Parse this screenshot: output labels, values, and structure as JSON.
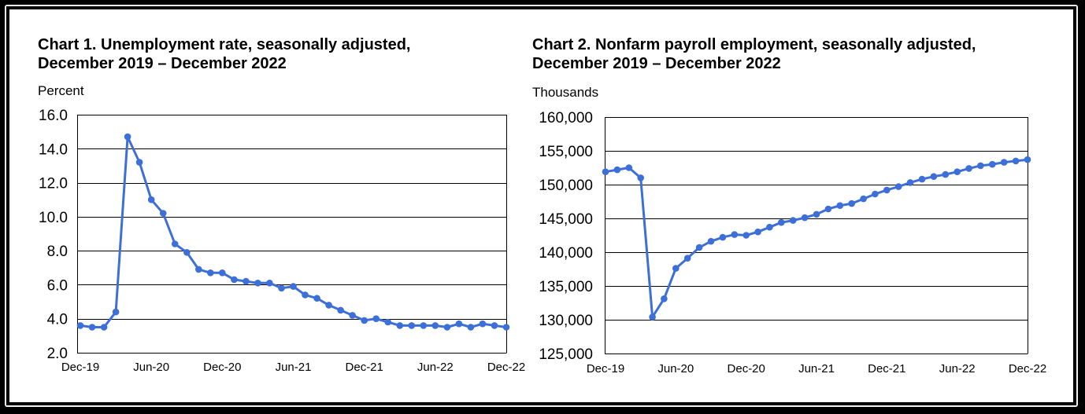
{
  "chart_data": [
    {
      "type": "line",
      "title": "Chart 1. Unemployment rate, seasonally adjusted,",
      "subtitle": "December 2019 – December 2022",
      "ylabel": "Percent",
      "ylim": [
        2.0,
        16.0
      ],
      "yticks": [
        "16.0",
        "14.0",
        "12.0",
        "10.0",
        "8.0",
        "6.0",
        "4.0",
        "2.0"
      ],
      "xticks": [
        "Dec-19",
        "Jun-20",
        "Dec-20",
        "Jun-21",
        "Dec-21",
        "Jun-22",
        "Dec-22"
      ],
      "grid": true,
      "markers": true,
      "line_color": "#3c6fd7",
      "x": [
        "Dec-19",
        "Jan-20",
        "Feb-20",
        "Mar-20",
        "Apr-20",
        "May-20",
        "Jun-20",
        "Jul-20",
        "Aug-20",
        "Sep-20",
        "Oct-20",
        "Nov-20",
        "Dec-20",
        "Jan-21",
        "Feb-21",
        "Mar-21",
        "Apr-21",
        "May-21",
        "Jun-21",
        "Jul-21",
        "Aug-21",
        "Sep-21",
        "Oct-21",
        "Nov-21",
        "Dec-21",
        "Jan-22",
        "Feb-22",
        "Mar-22",
        "Apr-22",
        "May-22",
        "Jun-22",
        "Jul-22",
        "Aug-22",
        "Sep-22",
        "Oct-22",
        "Nov-22",
        "Dec-22"
      ],
      "y": [
        3.6,
        3.5,
        3.5,
        4.4,
        14.7,
        13.2,
        11.0,
        10.2,
        8.4,
        7.9,
        6.9,
        6.7,
        6.7,
        6.3,
        6.2,
        6.1,
        6.1,
        5.8,
        5.9,
        5.4,
        5.2,
        4.8,
        4.5,
        4.2,
        3.9,
        4.0,
        3.8,
        3.6,
        3.6,
        3.6,
        3.6,
        3.5,
        3.7,
        3.5,
        3.7,
        3.6,
        3.5
      ]
    },
    {
      "type": "line",
      "title": "Chart 2. Nonfarm payroll employment, seasonally adjusted,",
      "subtitle": "December 2019 – December 2022",
      "ylabel": "Thousands",
      "ylim": [
        125000,
        160000
      ],
      "yticks": [
        "160,000",
        "155,000",
        "150,000",
        "145,000",
        "140,000",
        "135,000",
        "130,000",
        "125,000"
      ],
      "xticks": [
        "Dec-19",
        "Jun-20",
        "Dec-20",
        "Jun-21",
        "Dec-21",
        "Jun-22",
        "Dec-22"
      ],
      "grid": true,
      "markers": true,
      "line_color": "#3c6fd7",
      "x": [
        "Dec-19",
        "Jan-20",
        "Feb-20",
        "Mar-20",
        "Apr-20",
        "May-20",
        "Jun-20",
        "Jul-20",
        "Aug-20",
        "Sep-20",
        "Oct-20",
        "Nov-20",
        "Dec-20",
        "Jan-21",
        "Feb-21",
        "Mar-21",
        "Apr-21",
        "May-21",
        "Jun-21",
        "Jul-21",
        "Aug-21",
        "Sep-21",
        "Oct-21",
        "Nov-21",
        "Dec-21",
        "Jan-22",
        "Feb-22",
        "Mar-22",
        "Apr-22",
        "May-22",
        "Jun-22",
        "Jul-22",
        "Aug-22",
        "Sep-22",
        "Oct-22",
        "Nov-22",
        "Dec-22"
      ],
      "y": [
        151900,
        152200,
        152500,
        151000,
        130400,
        133100,
        137600,
        139100,
        140700,
        141600,
        142200,
        142600,
        142500,
        143000,
        143700,
        144400,
        144700,
        145100,
        145600,
        146400,
        146900,
        147200,
        147900,
        148600,
        149200,
        149700,
        150300,
        150800,
        151200,
        151500,
        151900,
        152400,
        152800,
        153000,
        153300,
        153500,
        153700
      ]
    }
  ]
}
